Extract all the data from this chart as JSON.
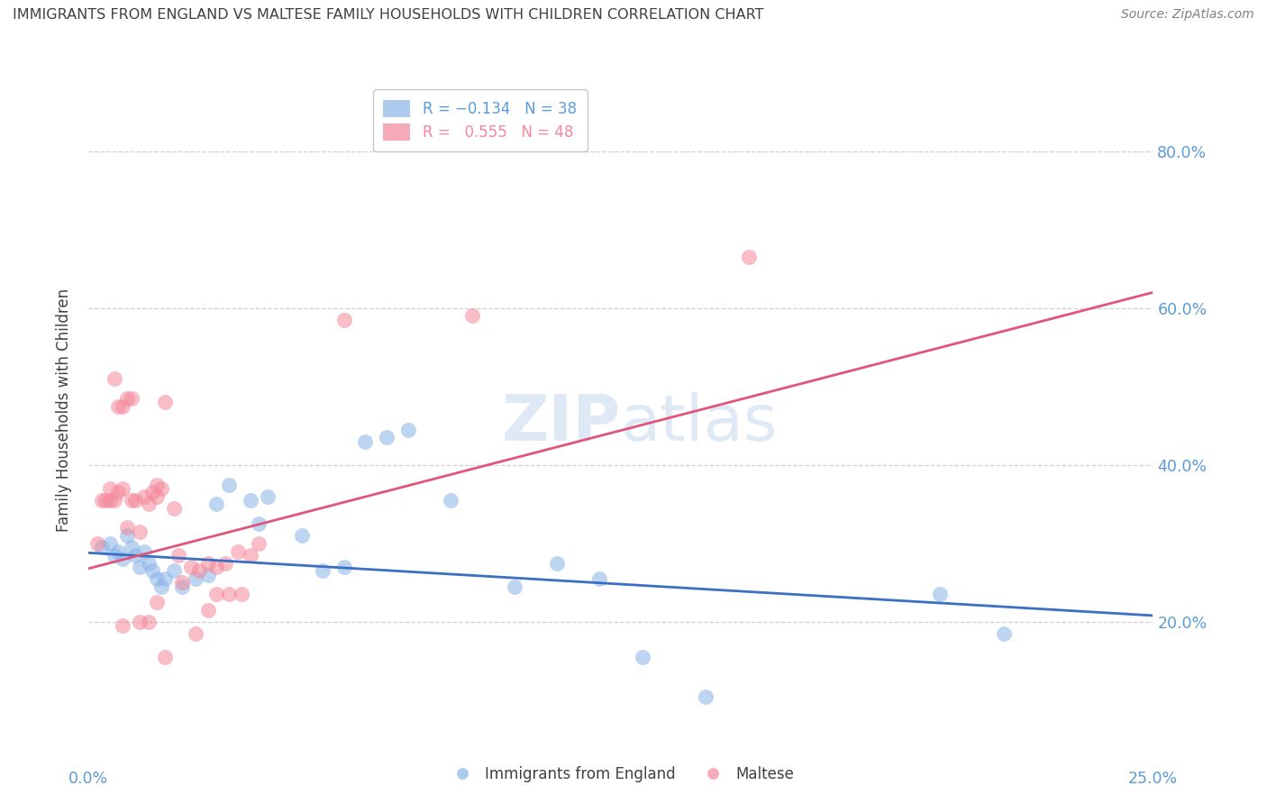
{
  "title": "IMMIGRANTS FROM ENGLAND VS MALTESE FAMILY HOUSEHOLDS WITH CHILDREN CORRELATION CHART",
  "source": "Source: ZipAtlas.com",
  "ylabel": "Family Households with Children",
  "yaxis_labels": [
    "20.0%",
    "40.0%",
    "60.0%",
    "80.0%"
  ],
  "yaxis_values": [
    0.2,
    0.4,
    0.6,
    0.8
  ],
  "xlim": [
    0.0,
    0.25
  ],
  "ylim": [
    0.06,
    0.88
  ],
  "watermark": "ZIPatlas",
  "blue_color": "#89b4e8",
  "pink_color": "#f4879a",
  "blue_scatter": [
    [
      0.003,
      0.295
    ],
    [
      0.005,
      0.3
    ],
    [
      0.006,
      0.285
    ],
    [
      0.007,
      0.29
    ],
    [
      0.008,
      0.28
    ],
    [
      0.009,
      0.31
    ],
    [
      0.01,
      0.295
    ],
    [
      0.011,
      0.285
    ],
    [
      0.012,
      0.27
    ],
    [
      0.013,
      0.29
    ],
    [
      0.014,
      0.275
    ],
    [
      0.015,
      0.265
    ],
    [
      0.016,
      0.255
    ],
    [
      0.017,
      0.245
    ],
    [
      0.018,
      0.255
    ],
    [
      0.02,
      0.265
    ],
    [
      0.022,
      0.245
    ],
    [
      0.025,
      0.255
    ],
    [
      0.028,
      0.26
    ],
    [
      0.03,
      0.35
    ],
    [
      0.033,
      0.375
    ],
    [
      0.038,
      0.355
    ],
    [
      0.04,
      0.325
    ],
    [
      0.042,
      0.36
    ],
    [
      0.05,
      0.31
    ],
    [
      0.055,
      0.265
    ],
    [
      0.06,
      0.27
    ],
    [
      0.065,
      0.43
    ],
    [
      0.07,
      0.435
    ],
    [
      0.075,
      0.445
    ],
    [
      0.085,
      0.355
    ],
    [
      0.1,
      0.245
    ],
    [
      0.11,
      0.275
    ],
    [
      0.12,
      0.255
    ],
    [
      0.13,
      0.155
    ],
    [
      0.145,
      0.105
    ],
    [
      0.2,
      0.235
    ],
    [
      0.215,
      0.185
    ]
  ],
  "pink_scatter": [
    [
      0.002,
      0.3
    ],
    [
      0.003,
      0.355
    ],
    [
      0.004,
      0.355
    ],
    [
      0.005,
      0.355
    ],
    [
      0.005,
      0.37
    ],
    [
      0.006,
      0.355
    ],
    [
      0.007,
      0.365
    ],
    [
      0.008,
      0.37
    ],
    [
      0.009,
      0.32
    ],
    [
      0.01,
      0.355
    ],
    [
      0.011,
      0.355
    ],
    [
      0.012,
      0.315
    ],
    [
      0.013,
      0.36
    ],
    [
      0.014,
      0.35
    ],
    [
      0.015,
      0.365
    ],
    [
      0.016,
      0.36
    ],
    [
      0.016,
      0.375
    ],
    [
      0.017,
      0.37
    ],
    [
      0.018,
      0.48
    ],
    [
      0.02,
      0.345
    ],
    [
      0.021,
      0.285
    ],
    [
      0.022,
      0.25
    ],
    [
      0.024,
      0.27
    ],
    [
      0.026,
      0.265
    ],
    [
      0.028,
      0.275
    ],
    [
      0.03,
      0.27
    ],
    [
      0.032,
      0.275
    ],
    [
      0.035,
      0.29
    ],
    [
      0.038,
      0.285
    ],
    [
      0.04,
      0.3
    ],
    [
      0.008,
      0.195
    ],
    [
      0.012,
      0.2
    ],
    [
      0.016,
      0.225
    ],
    [
      0.025,
      0.185
    ],
    [
      0.028,
      0.215
    ],
    [
      0.03,
      0.235
    ],
    [
      0.033,
      0.235
    ],
    [
      0.036,
      0.235
    ],
    [
      0.06,
      0.585
    ],
    [
      0.09,
      0.59
    ],
    [
      0.155,
      0.665
    ],
    [
      0.006,
      0.51
    ],
    [
      0.007,
      0.475
    ],
    [
      0.008,
      0.475
    ],
    [
      0.009,
      0.485
    ],
    [
      0.01,
      0.485
    ],
    [
      0.018,
      0.155
    ],
    [
      0.014,
      0.2
    ]
  ],
  "blue_line_x": [
    0.0,
    0.25
  ],
  "blue_line_y": [
    0.288,
    0.208
  ],
  "pink_line_x": [
    0.0,
    0.25
  ],
  "pink_line_y": [
    0.268,
    0.62
  ],
  "grid_color": "#d0d0d0",
  "tick_label_color": "#5b9bd5",
  "title_color": "#404040",
  "source_color": "#808080"
}
